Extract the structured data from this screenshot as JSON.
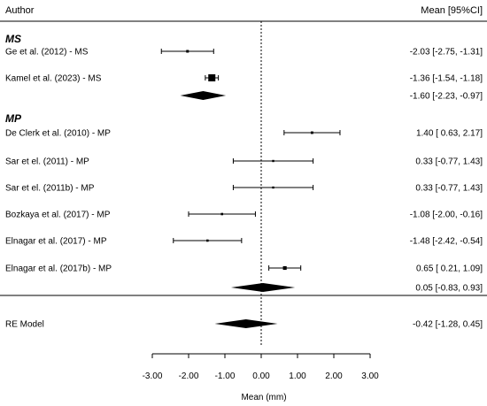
{
  "chart_data": {
    "type": "forest",
    "header": {
      "left": "Author",
      "right": "Mean [95%CI]"
    },
    "xlabel": "Mean (mm)",
    "xlim": [
      -3.0,
      3.0
    ],
    "xticks": [
      "-3.00",
      "-2.00",
      "-1.00",
      "0.00",
      "1.00",
      "2.00",
      "3.00"
    ],
    "groups": [
      {
        "label": "MS",
        "studies": [
          {
            "name": "Ge et al. (2012) - MS",
            "mean": -2.03,
            "lower": -2.75,
            "upper": -1.31,
            "ci_text": "-2.03 [-2.75, -1.31]"
          },
          {
            "name": "Kamel et al. (2023) - MS",
            "mean": -1.36,
            "lower": -1.54,
            "upper": -1.18,
            "ci_text": "-1.36 [-1.54, -1.18]"
          }
        ],
        "summary": {
          "mean": -1.6,
          "lower": -2.23,
          "upper": -0.97,
          "ci_text": "-1.60 [-2.23, -0.97]"
        }
      },
      {
        "label": "MP",
        "studies": [
          {
            "name": "De Clerk et al. (2010) - MP",
            "mean": 1.4,
            "lower": 0.63,
            "upper": 2.17,
            "ci_text": "1.40 [ 0.63,  2.17]"
          },
          {
            "name": "Sar et el. (2011) - MP",
            "mean": 0.33,
            "lower": -0.77,
            "upper": 1.43,
            "ci_text": "0.33 [-0.77,  1.43]"
          },
          {
            "name": "Sar et el. (2011b) - MP",
            "mean": 0.33,
            "lower": -0.77,
            "upper": 1.43,
            "ci_text": "0.33 [-0.77,  1.43]"
          },
          {
            "name": "Bozkaya et al. (2017) - MP",
            "mean": -1.08,
            "lower": -2.0,
            "upper": -0.16,
            "ci_text": "-1.08 [-2.00, -0.16]"
          },
          {
            "name": "Elnagar et al. (2017) - MP",
            "mean": -1.48,
            "lower": -2.42,
            "upper": -0.54,
            "ci_text": "-1.48 [-2.42, -0.54]"
          },
          {
            "name": "Elnagar et al. (2017b) - MP",
            "mean": 0.65,
            "lower": 0.21,
            "upper": 1.09,
            "ci_text": "0.65 [ 0.21,  1.09]"
          }
        ],
        "summary": {
          "mean": 0.05,
          "lower": -0.83,
          "upper": 0.93,
          "ci_text": "0.05 [-0.83,  0.93]"
        }
      }
    ],
    "overall": {
      "name": "RE Model",
      "mean": -0.42,
      "lower": -1.28,
      "upper": 0.45,
      "ci_text": "-0.42 [-1.28,  0.45]"
    }
  }
}
